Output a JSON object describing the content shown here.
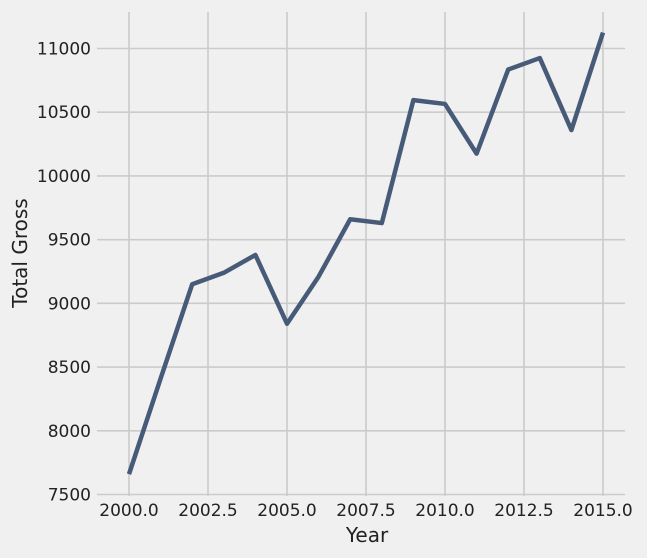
{
  "chart_data": {
    "type": "line",
    "xlabel": "Year",
    "ylabel": "Total Gross",
    "xlim": [
      2000,
      2015
    ],
    "ylim": [
      7500,
      11250
    ],
    "xticks": [
      2000,
      2002.5,
      2005,
      2007.5,
      2010,
      2012.5,
      2015
    ],
    "xtick_labels": [
      "2000.0",
      "2002.5",
      "2005.0",
      "2007.5",
      "2010.0",
      "2012.5",
      "2015.0"
    ],
    "yticks": [
      7500,
      8000,
      8500,
      9000,
      9500,
      10000,
      10500,
      11000
    ],
    "ytick_labels": [
      "7500",
      "8000",
      "8500",
      "9000",
      "9500",
      "10000",
      "10500",
      "11000"
    ],
    "grid": true,
    "colors": {
      "line": "#475a77",
      "background": "#f0f0f0",
      "grid": "#cbcbcb"
    },
    "series": [
      {
        "x": [
          2000,
          2001,
          2002,
          2003,
          2004,
          2005,
          2006,
          2007,
          2008,
          2009,
          2010,
          2011,
          2012,
          2013,
          2014,
          2015
        ],
        "values": [
          7660,
          8410,
          9150,
          9240,
          9380,
          8840,
          9210,
          9660,
          9630,
          10595,
          10565,
          10175,
          10835,
          10925,
          10360,
          11125
        ]
      }
    ]
  }
}
